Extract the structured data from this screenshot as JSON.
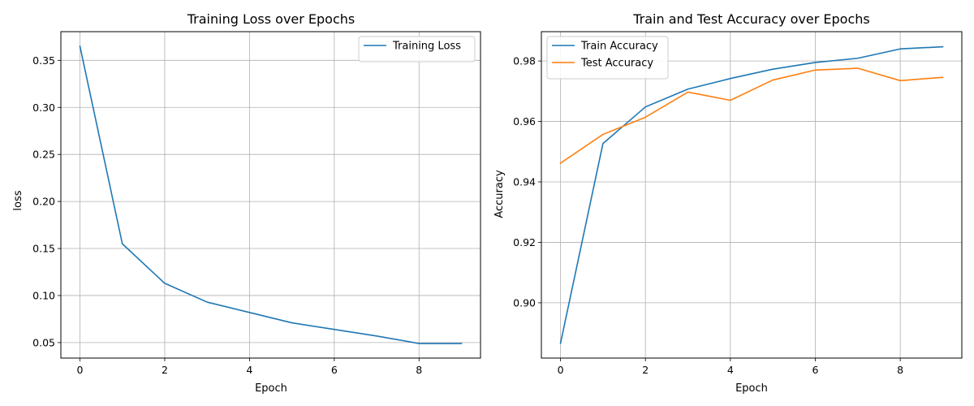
{
  "chart_data": [
    {
      "type": "line",
      "title": "Training Loss over Epochs",
      "xlabel": "Epoch",
      "ylabel": "loss",
      "x": [
        0,
        1,
        2,
        3,
        4,
        5,
        6,
        7,
        8,
        9
      ],
      "xlim": [
        -0.45,
        9.45
      ],
      "ylim": [
        0.0335,
        0.3805
      ],
      "xticks": [
        0,
        2,
        4,
        6,
        8
      ],
      "yticks": [
        0.05,
        0.1,
        0.15,
        0.2,
        0.25,
        0.3,
        0.35
      ],
      "ytick_labels": [
        "0.05",
        "0.10",
        "0.15",
        "0.20",
        "0.25",
        "0.30",
        "0.35"
      ],
      "grid": true,
      "legend": "upper-right",
      "series": [
        {
          "name": "Training Loss",
          "color": "#1f77b4",
          "values": [
            0.365,
            0.155,
            0.113,
            0.093,
            0.082,
            0.071,
            0.064,
            0.057,
            0.049,
            0.049
          ]
        }
      ]
    },
    {
      "type": "line",
      "title": "Train and Test Accuracy over Epochs",
      "xlabel": "Epoch",
      "ylabel": "Accuracy",
      "x": [
        0,
        1,
        2,
        3,
        4,
        5,
        6,
        7,
        8,
        9
      ],
      "xlim": [
        -0.45,
        9.45
      ],
      "ylim": [
        0.8817,
        0.9897
      ],
      "xticks": [
        0,
        2,
        4,
        6,
        8
      ],
      "yticks": [
        0.9,
        0.92,
        0.94,
        0.96,
        0.98
      ],
      "ytick_labels": [
        "0.90",
        "0.92",
        "0.94",
        "0.96",
        "0.98"
      ],
      "grid": true,
      "legend": "upper-left",
      "series": [
        {
          "name": "Train Accuracy",
          "color": "#1f77b4",
          "values": [
            0.8866,
            0.9527,
            0.9648,
            0.9707,
            0.9742,
            0.9773,
            0.9795,
            0.9809,
            0.984,
            0.9847
          ]
        },
        {
          "name": "Test Accuracy",
          "color": "#ff7f0e",
          "values": [
            0.9462,
            0.9557,
            0.9614,
            0.9697,
            0.967,
            0.9737,
            0.977,
            0.9776,
            0.9735,
            0.9746
          ]
        }
      ]
    }
  ]
}
